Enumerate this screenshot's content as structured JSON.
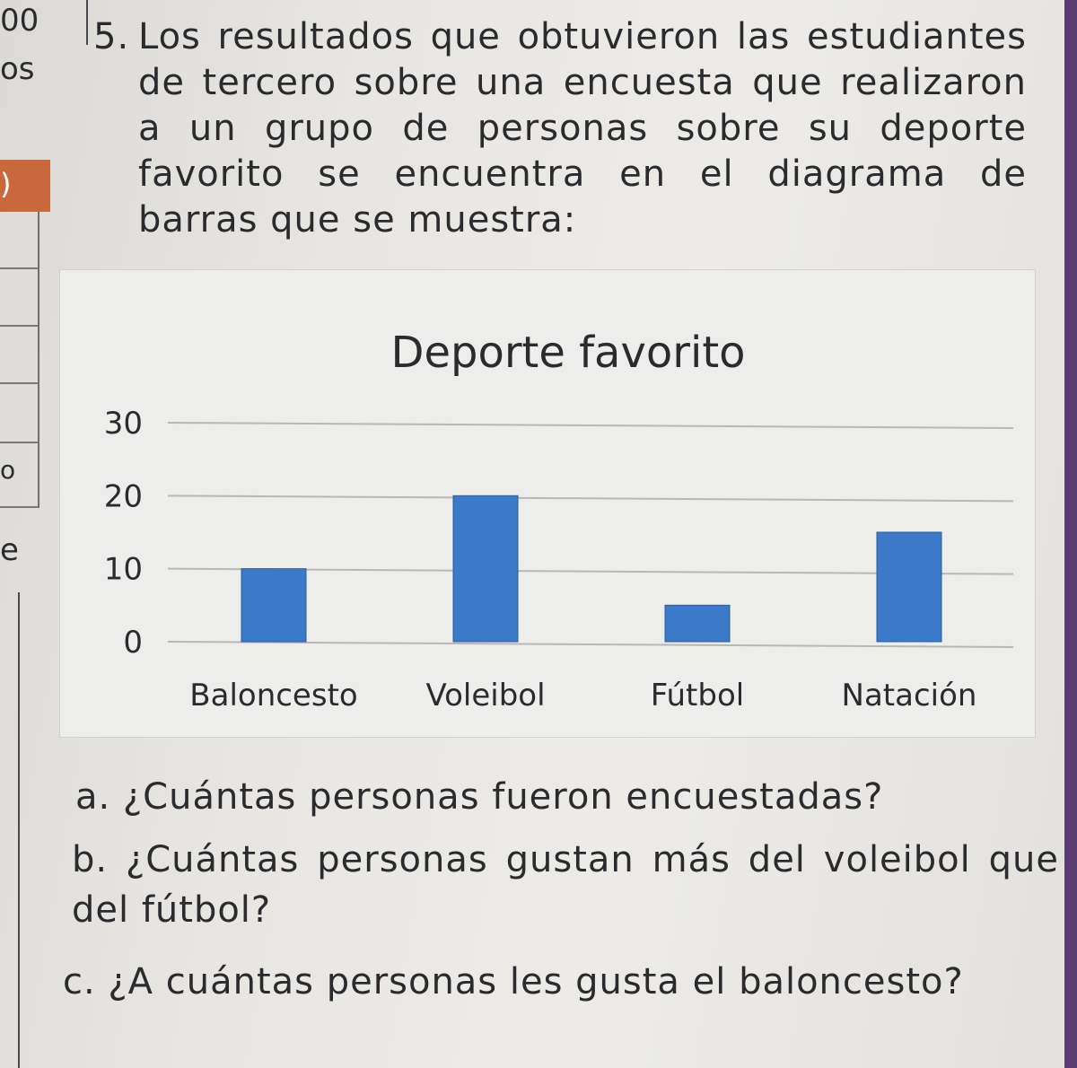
{
  "margin": {
    "top_num": "00",
    "line2": "os",
    "tab": ")",
    "deg": "o",
    "e": "e"
  },
  "question": {
    "number": "5.",
    "text": "Los resultados que obtuvieron las estudiantes de tercero sobre una encuesta que realizaron a un grupo de personas sobre su deporte favorito se encuentra en el diagrama de barras que se muestra:"
  },
  "chart_data": {
    "type": "bar",
    "title": "Deporte favorito",
    "categories": [
      "Baloncesto",
      "Voleibol",
      "Fútbol",
      "Natación"
    ],
    "values": [
      10,
      20,
      5,
      15
    ],
    "yticks": [
      0,
      10,
      20,
      30
    ],
    "ylim": [
      0,
      30
    ],
    "xlabel": "",
    "ylabel": "",
    "grid": true,
    "bar_color": "#3a7ac8"
  },
  "subquestions": {
    "a": "a. ¿Cuántas personas fueron encuestadas?",
    "b": "b. ¿Cuántas personas gustan más del voleibol que del fútbol?",
    "c": "c. ¿A cuántas personas les gusta el baloncesto?"
  }
}
